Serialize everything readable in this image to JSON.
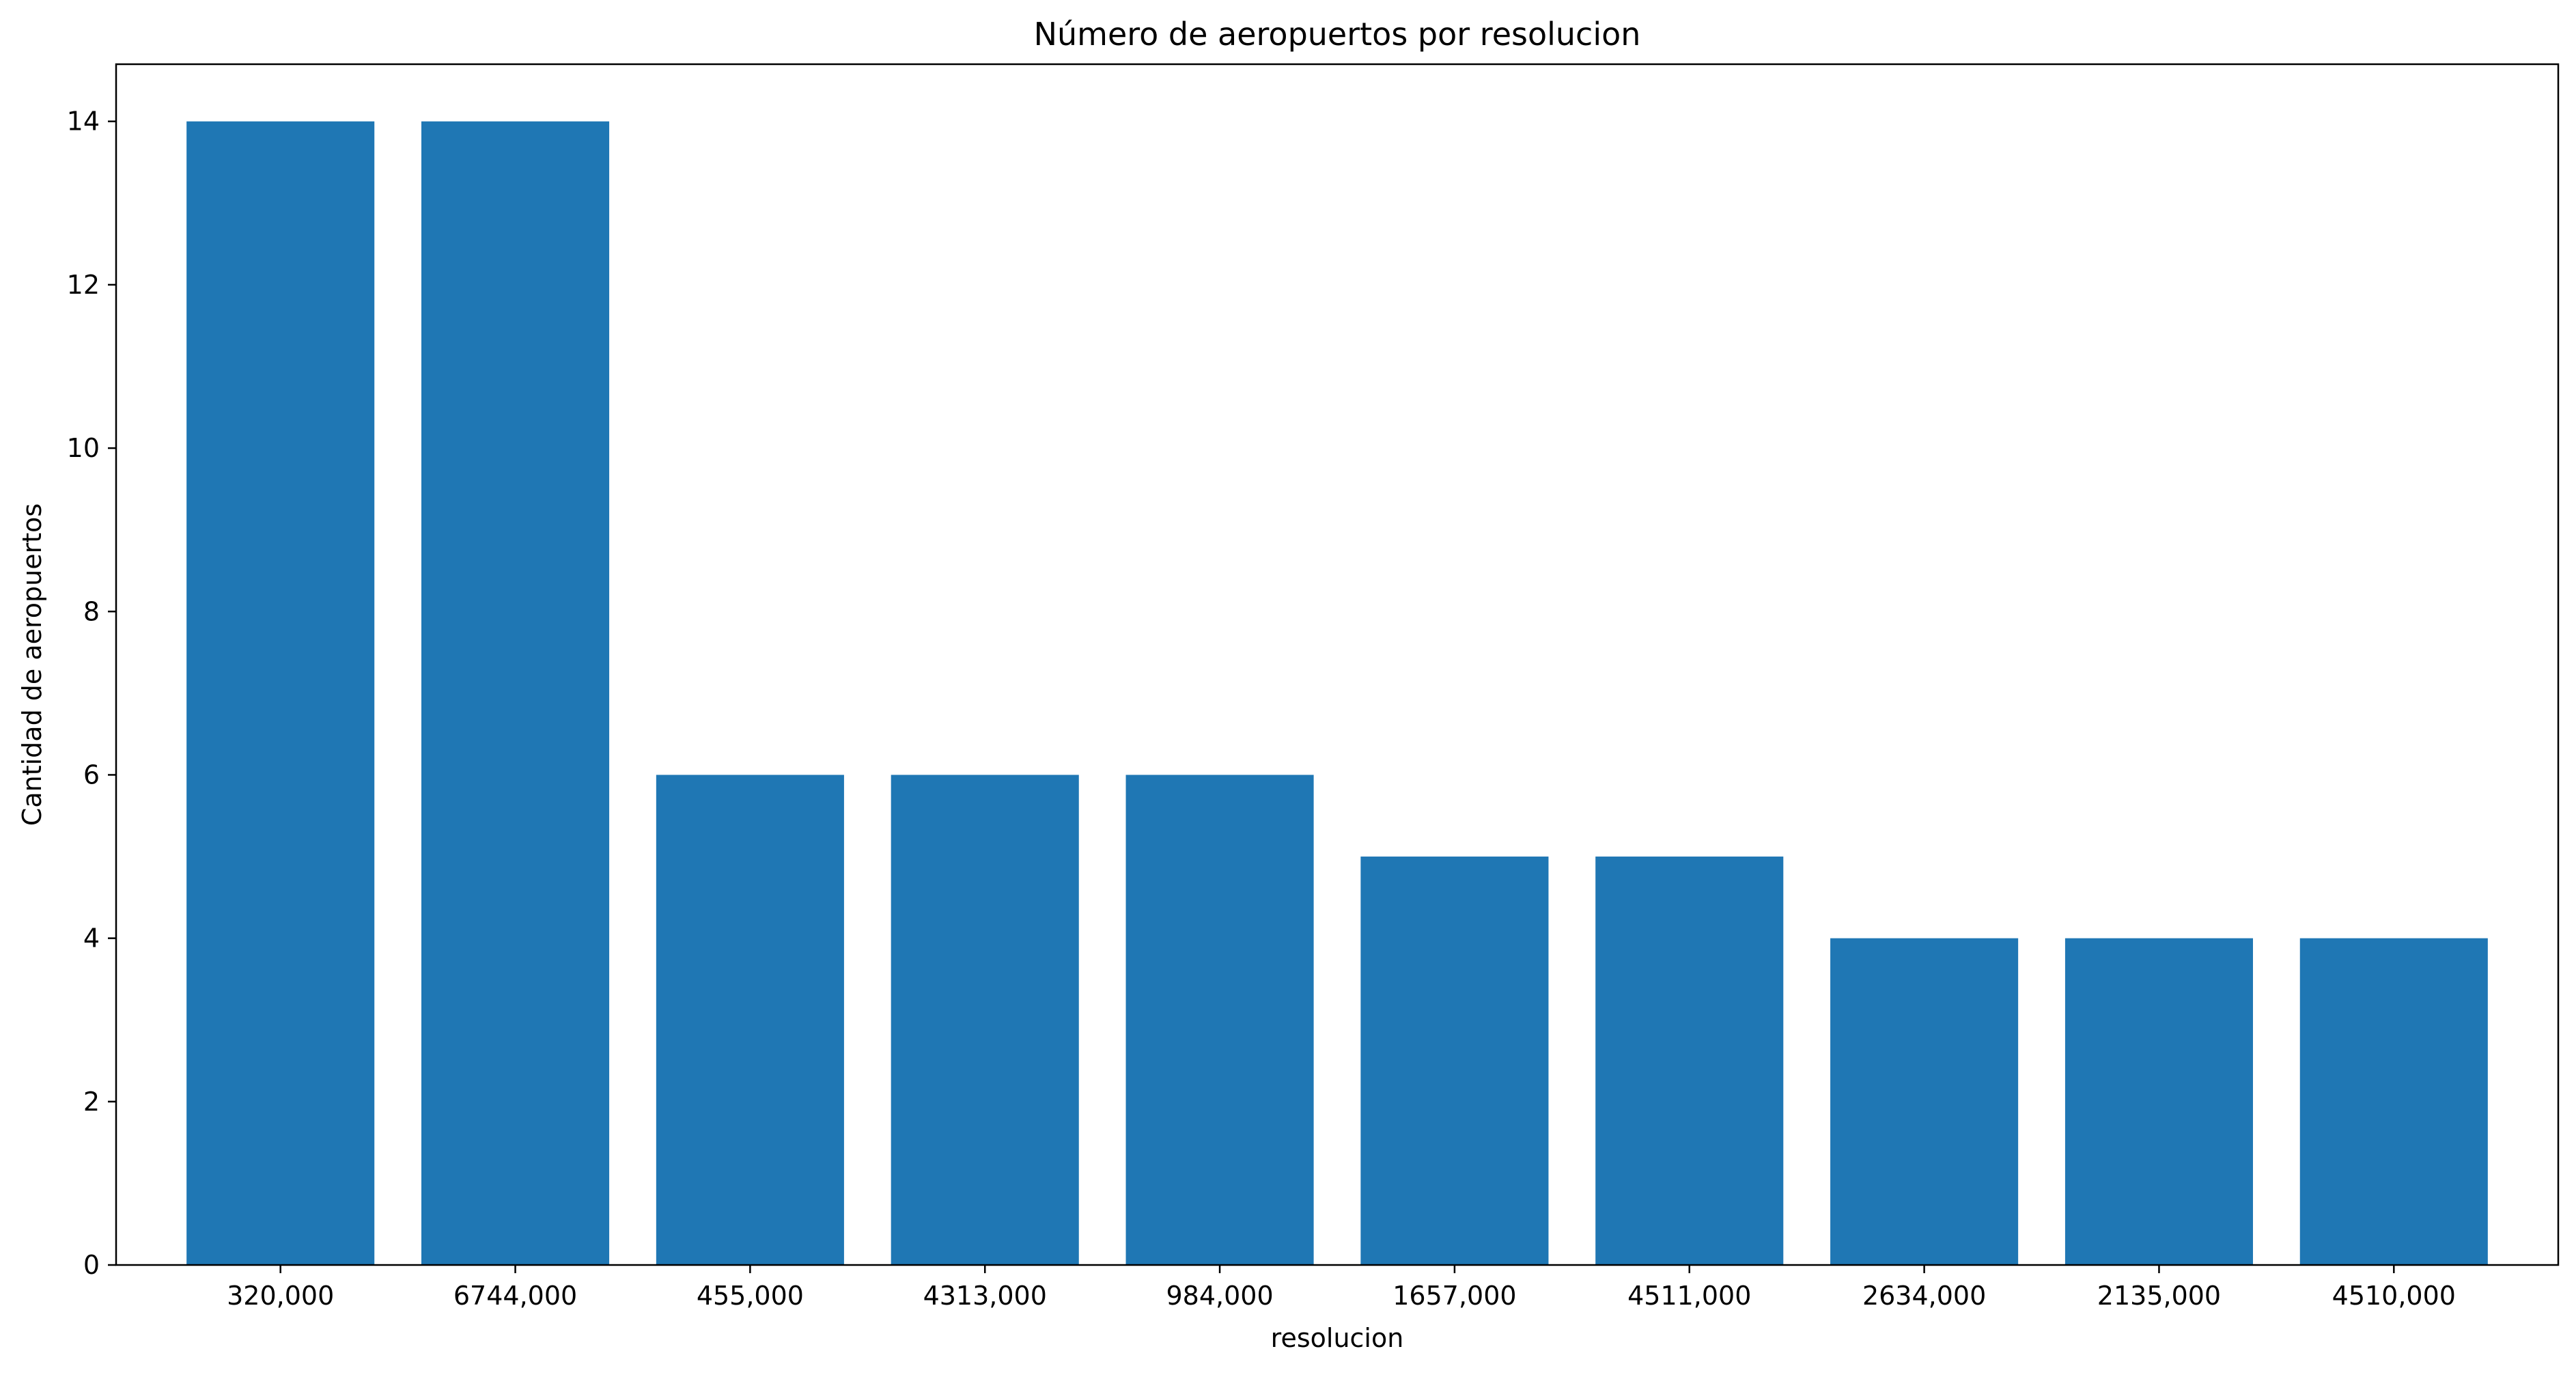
{
  "chart_data": {
    "type": "bar",
    "title": "Número de aeropuertos por resolucion",
    "xlabel": "resolucion",
    "ylabel": "Cantidad de aeropuertos",
    "categories": [
      "320,000",
      "6744,000",
      "455,000",
      "4313,000",
      "984,000",
      "1657,000",
      "4511,000",
      "2634,000",
      "2135,000",
      "4510,000"
    ],
    "values": [
      14,
      14,
      6,
      6,
      6,
      5,
      5,
      4,
      4,
      4
    ],
    "ylim": [
      0,
      14.7
    ],
    "yticks": [
      "0",
      "2",
      "4",
      "6",
      "8",
      "10",
      "12",
      "14"
    ],
    "bar_color": "#1f77b4",
    "grid": false,
    "legend": "none"
  }
}
